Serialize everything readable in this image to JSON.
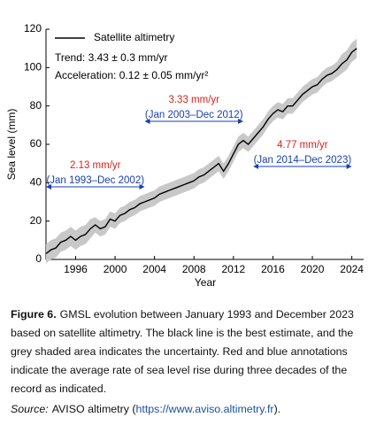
{
  "chart_data": {
    "type": "line",
    "x_label": "Year",
    "y_label": "Sea level (mm)",
    "x": [
      1993.0,
      1993.5,
      1994.0,
      1994.5,
      1995.0,
      1995.5,
      1996.0,
      1996.5,
      1997.0,
      1997.5,
      1998.0,
      1998.5,
      1999.0,
      1999.5,
      2000.0,
      2000.5,
      2001.0,
      2001.5,
      2002.0,
      2002.5,
      2003.0,
      2003.5,
      2004.0,
      2004.5,
      2005.0,
      2005.5,
      2006.0,
      2006.5,
      2007.0,
      2007.5,
      2008.0,
      2008.5,
      2009.0,
      2009.5,
      2010.0,
      2010.5,
      2011.0,
      2011.5,
      2012.0,
      2012.5,
      2013.0,
      2013.5,
      2014.0,
      2014.5,
      2015.0,
      2015.5,
      2016.0,
      2016.5,
      2017.0,
      2017.5,
      2018.0,
      2018.5,
      2019.0,
      2019.5,
      2020.0,
      2020.5,
      2021.0,
      2021.5,
      2022.0,
      2022.5,
      2023.0,
      2023.5,
      2024.0,
      2024.5
    ],
    "series": [
      {
        "name": "Satellite altimetry",
        "color": "#000000",
        "band_color": "#c8c8c8",
        "values": [
          3,
          5,
          6,
          9,
          10,
          12,
          10,
          12,
          13,
          16,
          18,
          16,
          17,
          21,
          20,
          23,
          24,
          26,
          27,
          29,
          30,
          31,
          32,
          34,
          35,
          36,
          37,
          38,
          39,
          40,
          41,
          43,
          44,
          46,
          48,
          50,
          46,
          50,
          55,
          60,
          62,
          60,
          63,
          66,
          69,
          73,
          76,
          78,
          77,
          80,
          80,
          83,
          86,
          88,
          90,
          91,
          94,
          96,
          97,
          99,
          102,
          104,
          108,
          110
        ],
        "errors": [
          5,
          5,
          5,
          5,
          5,
          5,
          5,
          5,
          5,
          5,
          4,
          4,
          4,
          4,
          4,
          4,
          4,
          4,
          4,
          4,
          4,
          4,
          4,
          4,
          4,
          4,
          4,
          4,
          4,
          4,
          4,
          4,
          4,
          4,
          4,
          4,
          4,
          4,
          4,
          4,
          4,
          4,
          4,
          4,
          4,
          4,
          4,
          4,
          4,
          4,
          4,
          4,
          4,
          4,
          4,
          4,
          4,
          4,
          4,
          4,
          5,
          5,
          5,
          5
        ]
      }
    ],
    "trend": "Trend: 3.43 ± 0.3 mm/yr",
    "acceleration": "Acceleration: 0.12 ± 0.05 mm/yr²",
    "annotations": [
      {
        "rate": "2.13 mm/yr",
        "period": "(Jan 1993–Dec 2002)",
        "span": [
          1993,
          2003
        ]
      },
      {
        "rate": "3.33 mm/yr",
        "period": "(Jan 2003–Dec 2012)",
        "span": [
          2003,
          2013
        ]
      },
      {
        "rate": "4.77 mm/yr",
        "period": "(Jan 2014–Dec 2023)",
        "span": [
          2014,
          2024
        ]
      }
    ],
    "xlim": [
      1993,
      2025.2
    ],
    "xticks": [
      1996,
      2000,
      2004,
      2008,
      2012,
      2016,
      2020,
      2024
    ],
    "ylim": [
      0,
      120
    ],
    "yticks": [
      0,
      20,
      40,
      60,
      80,
      100,
      120
    ]
  },
  "caption": {
    "label": "Figure 6.",
    "text": "GMSL evolution between January 1993 and December 2023 based on satellite altimetry. The black line is the best estimate, and the grey shaded area indicates the uncertainty. Red and blue annotations indicate the average rate of sea level rise during three decades of the record as indicated.",
    "source_label": "Source:",
    "source_text": "AVISO altimetry (",
    "url": "https://www.aviso.altimetry.fr",
    "tail": ")."
  }
}
